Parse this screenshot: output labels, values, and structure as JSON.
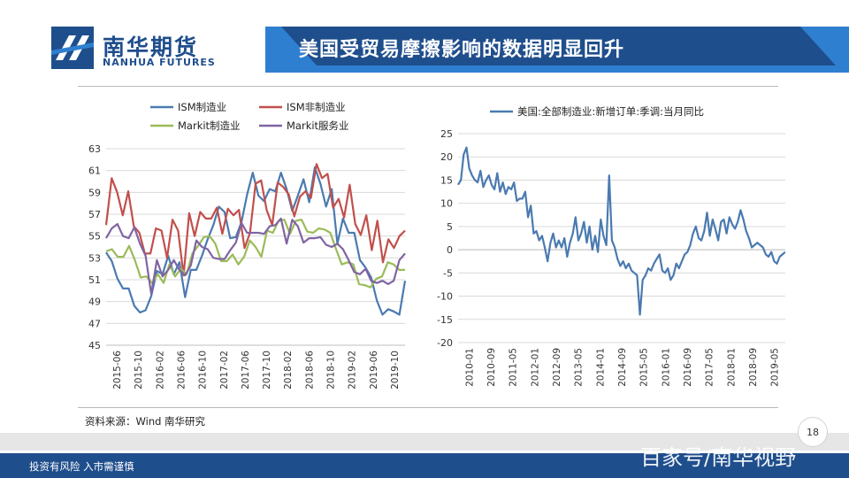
{
  "header": {
    "logo_cn": "南华期货",
    "logo_en": "NANHUA FUTURES",
    "title": "美国受贸易摩擦影响的数据明显回升",
    "brand_blue": "#1f4e8c",
    "accent_blue": "#2f7fd0"
  },
  "source_note": "资料来源：Wind 南华研究",
  "footer": {
    "disclaimer": "投资有风险 入市需谨慎",
    "page_number": "18",
    "watermark": "百家号/南华视野"
  },
  "chart_data": [
    {
      "type": "line",
      "title": "",
      "ylim": [
        45,
        63
      ],
      "yticks": [
        45,
        47,
        49,
        51,
        53,
        55,
        57,
        59,
        61,
        63
      ],
      "x_labels": [
        "2015-06",
        "2015-10",
        "2016-02",
        "2016-06",
        "2016-10",
        "2017-02",
        "2017-06",
        "2017-10",
        "2018-02",
        "2018-06",
        "2018-10",
        "2019-02",
        "2019-06",
        "2019-10"
      ],
      "legend_position": "top",
      "series": [
        {
          "name": "ISM制造业",
          "color": "#4a7ab0",
          "values": [
            53.5,
            52.7,
            51.1,
            50.2,
            50.2,
            48.6,
            48.0,
            48.2,
            49.5,
            51.8,
            51.5,
            53.2,
            51.5,
            52.6,
            49.4,
            51.9,
            51.9,
            53.2,
            54.7,
            56.0,
            57.7,
            57.2,
            54.8,
            54.9,
            56.3,
            58.8,
            60.8,
            58.7,
            58.2,
            59.3,
            59.1,
            60.8,
            59.3,
            57.3,
            58.7,
            60.2,
            58.1,
            61.3,
            59.8,
            57.7,
            59.3,
            54.3,
            56.6,
            55.3,
            55.3,
            52.8,
            52.1,
            51.2,
            49.1,
            47.8,
            48.3,
            48.1,
            47.8,
            50.9
          ]
        },
        {
          "name": "ISM非制造业",
          "color": "#c0504d",
          "values": [
            56.0,
            60.3,
            59.0,
            56.9,
            59.1,
            55.9,
            55.3,
            53.4,
            53.4,
            55.7,
            55.5,
            53.0,
            56.5,
            55.5,
            51.4,
            57.1,
            55.0,
            57.2,
            56.6,
            56.6,
            57.6,
            55.2,
            57.5,
            56.9,
            57.4,
            53.9,
            55.3,
            59.8,
            60.1,
            57.4,
            56.0,
            59.9,
            59.5,
            58.8,
            56.8,
            58.6,
            59.1,
            58.5,
            61.6,
            60.3,
            60.7,
            57.6,
            58.4,
            56.7,
            59.7,
            56.1,
            55.1,
            56.9,
            53.7,
            56.4,
            52.6,
            54.7,
            53.9,
            55.0,
            55.5
          ]
        },
        {
          "name": "Markit制造业",
          "color": "#9bbb59",
          "values": [
            53.6,
            53.8,
            53.1,
            53.1,
            54.1,
            52.8,
            51.2,
            51.3,
            50.7,
            51.5,
            50.7,
            52.4,
            51.3,
            52.0,
            51.5,
            53.4,
            54.1,
            54.9,
            55.0,
            54.3,
            52.7,
            52.7,
            53.3,
            52.4,
            53.1,
            54.6,
            54.0,
            53.1,
            55.5,
            55.3,
            56.4,
            56.5,
            55.2,
            56.4,
            56.5,
            55.4,
            55.3,
            55.7,
            55.6,
            55.3,
            53.8,
            52.4,
            52.6,
            52.4,
            50.6,
            50.5,
            50.3,
            51.1,
            51.3,
            52.6,
            52.4,
            51.9,
            51.9
          ]
        },
        {
          "name": "Markit服务业",
          "color": "#8064a2",
          "values": [
            54.8,
            55.7,
            56.1,
            55.0,
            54.8,
            55.8,
            54.3,
            53.2,
            49.7,
            52.8,
            51.3,
            51.9,
            52.8,
            51.9,
            51.4,
            52.3,
            54.6,
            54.0,
            53.8,
            53.0,
            52.9,
            52.9,
            53.7,
            54.4,
            56.2,
            55.3,
            55.3,
            55.3,
            55.2,
            55.9,
            56.0,
            56.6,
            54.3,
            56.5,
            55.9,
            54.4,
            54.8,
            54.8,
            54.9,
            54.2,
            54.0,
            54.3,
            53.8,
            52.8,
            51.7,
            51.5,
            52.0,
            50.9,
            50.7,
            50.9,
            50.6,
            50.9,
            52.8,
            53.4
          ]
        }
      ]
    },
    {
      "type": "line",
      "title": "",
      "ylim": [
        -20,
        25
      ],
      "yticks": [
        -20,
        -15,
        -10,
        -5,
        0,
        5,
        10,
        15,
        20,
        25
      ],
      "x_labels": [
        "2010-01",
        "2010-09",
        "2011-05",
        "2012-01",
        "2012-09",
        "2013-05",
        "2014-01",
        "2014-09",
        "2015-05",
        "2016-01",
        "2016-09",
        "2017-05",
        "2018-01",
        "2018-09",
        "2019-05"
      ],
      "legend_position": "top",
      "series": [
        {
          "name": "美国:全部制造业:新增订单:季调:当月同比",
          "color": "#4a7ab0",
          "values": [
            14.0,
            15.0,
            20.5,
            22.0,
            17.5,
            16.0,
            15.0,
            14.5,
            17.0,
            13.5,
            15.0,
            16.0,
            14.0,
            13.0,
            16.5,
            12.5,
            14.5,
            12.0,
            13.5,
            13.0,
            14.5,
            10.5,
            11.0,
            11.0,
            12.5,
            7.0,
            9.5,
            3.5,
            4.0,
            2.0,
            3.0,
            0.5,
            -2.5,
            1.5,
            3.5,
            0.5,
            2.0,
            0.5,
            2.5,
            -1.5,
            1.5,
            3.5,
            7.0,
            2.0,
            3.5,
            6.0,
            1.5,
            5.0,
            0.0,
            3.0,
            -0.5,
            6.5,
            3.0,
            1.0,
            16.0,
            2.0,
            0.5,
            -2.0,
            -3.5,
            -2.5,
            -4.0,
            -3.0,
            -4.5,
            -5.0,
            -5.5,
            -14.0,
            -6.5,
            -5.5,
            -4.0,
            -4.5,
            -3.0,
            -2.0,
            -1.0,
            -4.5,
            -5.0,
            -4.0,
            -6.5,
            -5.5,
            -3.0,
            -4.0,
            -2.5,
            -1.0,
            -0.5,
            1.0,
            3.5,
            5.0,
            2.5,
            2.0,
            4.0,
            8.0,
            3.0,
            6.5,
            4.5,
            2.0,
            6.0,
            6.5,
            3.5,
            7.0,
            5.5,
            4.5,
            6.0,
            8.5,
            6.5,
            4.0,
            2.5,
            0.5,
            1.0,
            1.5,
            1.0,
            0.5,
            -1.0,
            -1.5,
            -0.5,
            -2.5,
            -3.0,
            -1.5,
            -1.0,
            -0.5
          ]
        }
      ]
    }
  ]
}
